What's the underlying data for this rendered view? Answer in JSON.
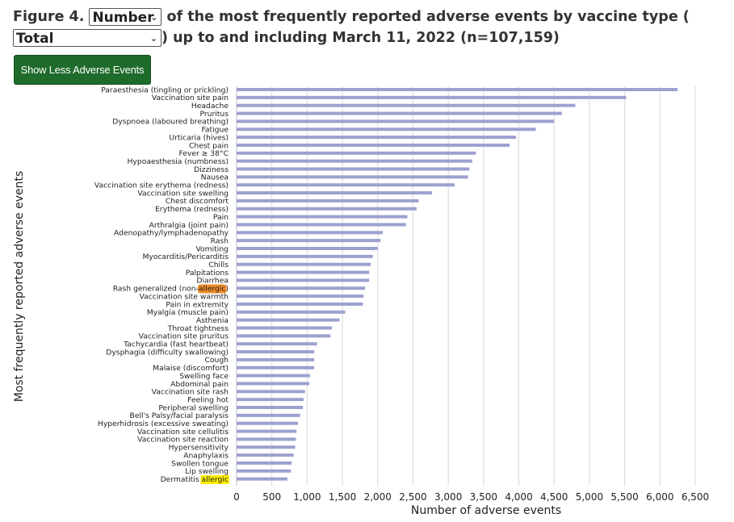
{
  "header": {
    "prefix": "Figure 4.",
    "metric_select": "Number",
    "line1_suffix": "of the most frequently reported adverse events by vaccine type (",
    "vaccine_select": "Total",
    "line2_suffix": ") up to and including March 11, 2022 (n=107,159)"
  },
  "toggle_button": "Show Less Adverse Events",
  "colors": {
    "bar": "#9ca1d0",
    "grid": "#d9d9d9",
    "button": "#1f6b2b",
    "hl_orange": "#f28c28",
    "hl_yellow": "#ffee00"
  },
  "chart_data": {
    "type": "bar",
    "orientation": "horizontal",
    "xlabel": "Number of adverse events",
    "ylabel": "Most frequently reported adverse events",
    "xlim": [
      0,
      6750
    ],
    "xticks": [
      "0",
      "500",
      "1,000",
      "1,500",
      "2,000",
      "2,500",
      "3,000",
      "3,500",
      "4,000",
      "4,500",
      "5,000",
      "5,500",
      "6,000",
      "6,500"
    ],
    "grid": "vertical",
    "categories": [
      "Paraesthesia (tingling or prickling)",
      "Vaccination site pain",
      "Headache",
      "Pruritus",
      "Dyspnoea (laboured breathing)",
      "Fatigue",
      "Urticaria (hives)",
      "Chest pain",
      "Fever ≥ 38°C",
      "Hypoaesthesia (numbness)",
      "Dizziness",
      "Nausea",
      "Vaccination site erythema (redness)",
      "Vaccination site swelling",
      "Chest discomfort",
      "Erythema (redness)",
      "Pain",
      "Arthralgia (joint pain)",
      "Adenopathy/lymphadenopathy",
      "Rash",
      "Vomiting",
      "Myocarditis/Pericarditis",
      "Chills",
      "Palpitations",
      "Diarrhea",
      "Rash generalized (non-allergic)",
      "Vaccination site warmth",
      "Pain in extremity",
      "Myalgia (muscle pain)",
      "Asthenia",
      "Throat tightness",
      "Vaccination site pruritus",
      "Tachycardia (fast heartbeat)",
      "Dysphagia (difficulty swallowing)",
      "Cough",
      "Malaise (discomfort)",
      "Swelling face",
      "Abdominal pain",
      "Vaccination site rash",
      "Feeling hot",
      "Peripheral swelling",
      "Bell's Palsy/facial paralysis",
      "Hyperhidrosis (excessive sweating)",
      "Vaccination site cellulitis",
      "Vaccination site reaction",
      "Hypersensitivity",
      "Anaphylaxis",
      "Swollen tongue",
      "Lip swelling",
      "Dermatitis allergic"
    ],
    "values": [
      6250,
      5520,
      4800,
      4610,
      4500,
      4240,
      3960,
      3870,
      3390,
      3340,
      3300,
      3280,
      3090,
      2770,
      2580,
      2550,
      2420,
      2400,
      2070,
      2040,
      2000,
      1930,
      1900,
      1880,
      1880,
      1820,
      1800,
      1790,
      1540,
      1460,
      1350,
      1330,
      1140,
      1100,
      1100,
      1100,
      1040,
      1030,
      970,
      950,
      940,
      900,
      870,
      850,
      840,
      830,
      810,
      780,
      770,
      720
    ],
    "highlights": [
      {
        "category_index": 25,
        "term": "allergic",
        "color": "orange"
      },
      {
        "category_index": 49,
        "term": "allergic",
        "color": "yellow"
      }
    ]
  }
}
